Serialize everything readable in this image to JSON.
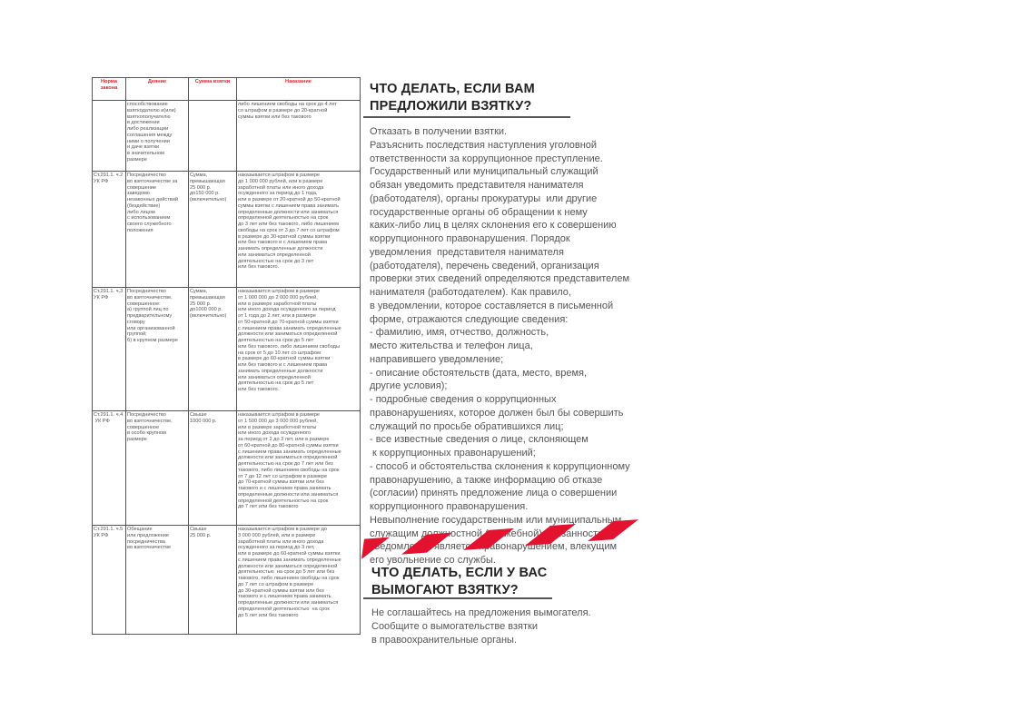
{
  "table": {
    "headers": [
      "Норма закона",
      "Деяние",
      "Сумма взятки",
      "Наказание"
    ],
    "rows": [
      {
        "norm": "",
        "act": "способствование\nвзяткодателю и(или)\nвзяткополучателю\nв достижении\nлибо реализации\nсоглашения между\nними о получении\nи даче взятки\nв значительном\nразмере",
        "sum": "",
        "punishment": "либо лишением свободы на срок до 4 лет\nсо штрафом в размере до 20-кратной\nсуммы взятки или без такового"
      },
      {
        "norm": "Ст.291.1. ч.2\nУК РФ",
        "act": "Посредничество\nво взяточничестве за\nсовершение\nзаведомо\nнезаконных действий\n(бездействие)\nлибо лицом\nс использованием\nсвоего служебного\nположения",
        "sum": "Сумма,\nпревышающая\n25 000 р.\nдо150 000 р.\n(включительно)",
        "punishment": "наказывается штрафом в размере\nдо 1 000 000 рублей, или в размере\nзаработной платы или иного дохода\nосужденного за период до 1 года,\nили в размере от 20-кратной до 50-кратной\nсуммы взятки с лишением права занимать\nопределенные должности или заниматься\nопределенной деятельностью на срок\nдо 3 лет или без такового, либо лишением\nсвободы на срок от 3 до 7 лет со штрафом\nв размере до 30-кратной суммы взятки\nили без такового и с лишением права\nзанимать определенные должности\nили заниматься определенной\nдеятельностью на срок до 3 лет\nили без такового."
      },
      {
        "norm": "Ст.291.1. ч.3\nУК РФ",
        "act": "Посредничество\nво взяточничестве,\nсовершенное:\nа) группой лиц по\nпредварительному\nсговору\nили организованной\nгруппой;\nб) в крупном размере",
        "sum": "Сумма,\nпревышающая\n25 000 р.\nдо1000 000 р.\n(включительно)",
        "punishment": "наказывается штрафом в размере\nот 1 000 000 до 2 000 000 рублей,\nили в размере заработной платы\nили иного дохода осужденного за период\nот 1 года до 2 лет, или в размере\nот 50-кратной до 70-кратной суммы взятки\nс лишением права занимать определенные\nдолжности или заниматься определенной\nдеятельностью на срок до 5 лет\nили без такового, либо лишением свободы\nна срок от 5 до 10 лет со штрафом\nв размере до 60-кратной суммы взятки\nили без такового и с лишением права\nзанимать определенные должности\nили заниматься определенной\nдеятельностью на срок до 5 лет\nили без такового."
      },
      {
        "norm": "Ст.291.1. ч.4\n УК РФ",
        "act": "Посредничество\nво взяточничестве,\nсовершенное\nв особо крупном\nразмере",
        "sum": "Свыше\n1000 000 р.",
        "punishment": "наказывается штрафом в размере\nот 1 500 000 до 3 000 000 рублей,\nили в размере заработной платы\nили иного дохода осужденного\nза период от 2 до 3 лет, или в размере\nот 60-кратной до 80-кратной суммы взятки\nс лишением права занимать определенные\nдолжности или заниматься определенной\nдеятельностью на срок до 7 лет или без\nтакового, либо лишением свободы на срок\nот 7 до 12 лет со штрафом в размере\nдо 70-кратной суммы взятки или без\nтакового и с лишением права занимать\nопределенные должности или заниматься\nопределенной деятельностью на срок\nдо 7 лет или без такового"
      },
      {
        "norm": "Ст.291.1. ч.5\nУК РФ",
        "act": "Обещание\nили предложение\nпосредничества\nво взяточничестве",
        "sum": "Свыше\n25 000 р.",
        "punishment": "наказывается штрафом в размере до\n3 000 000 рублей, или в размере\nзаработной платы или иного дохода\nосужденного за период до 3 лет,\nили в размере до 60-кратной суммы взятки\nс лишением права занимать определенные\nдолжности или заниматься определенной\nдеятельностью  на срок до 5 лет или без\nтакового, либо лишением свободы на срок\nдо 7 лет со штрафом в размере\nдо 30-кратной суммы взятки или без\nтакового и с лишением права занимать\nопределенные должности или заниматься\nопределенной деятельностью  на срок\nдо 5 лет или без такового"
      }
    ]
  },
  "section1": {
    "title_line1": "ЧТО ДЕЛАТЬ, ЕСЛИ ВАМ",
    "title_line2": "ПРЕДЛОЖИЛИ ВЗЯТКУ?",
    "body": "Отказать в получении взятки.\nРазъяснить последствия наступления уголовной\nответственности за коррупционное преступление.\nГосударственный или муниципальный служащий\nобязан уведомить представителя нанимателя\n(работодателя), органы прокуратуры  или другие\nгосударственные органы об обращении к нему\nкаких-либо лиц в целях склонения его к совершению\nкоррупционного правонарушения. Порядок\nуведомления  представителя нанимателя\n(работодателя), перечень сведений, организация\nпроверки этих сведений определяются представителем\nнанимателя (работодателем). Как правило,\nв уведомлении, которое составляется в письменной\nформе, отражаются следующие сведения:\n- фамилию, имя, отчество, должность,\nместо жительства и телефон лица,\nнаправившего уведомление;\n- описание обстоятельств (дата, место, время,\nдругие условия);\n- подробные сведения о коррупционных\nправонарушениях, которое должен был бы совершить\nслужащий по просьбе обратившихся лиц;\n- все известные сведения о лице, склоняющем\n к коррупционных правонарушений;\n- способ и обстоятельства склонения к коррупционному\nправонарушению, а также информацию об отказе\n(согласии) принять предложение лица о совершении\nкоррупционного правонарушения.\nНевыполнение государственным или муниципальным\nслужащим должностной (служебной) обязанности\nуведомления является правонарушением, влекущим\nего увольнение со службы."
  },
  "section2": {
    "title_line1": "ЧТО ДЕЛАТЬ, ЕСЛИ У ВАС",
    "title_line2": "ВЫМОГАЮТ ВЗЯТКУ?",
    "body": "Не соглашайтесь на предложения вымогателя.\nСообщите о вымогательстве взятки\nв правоохранительные органы."
  },
  "colors": {
    "accent": "#e3122f",
    "heading": "#222222",
    "text": "#555555"
  }
}
